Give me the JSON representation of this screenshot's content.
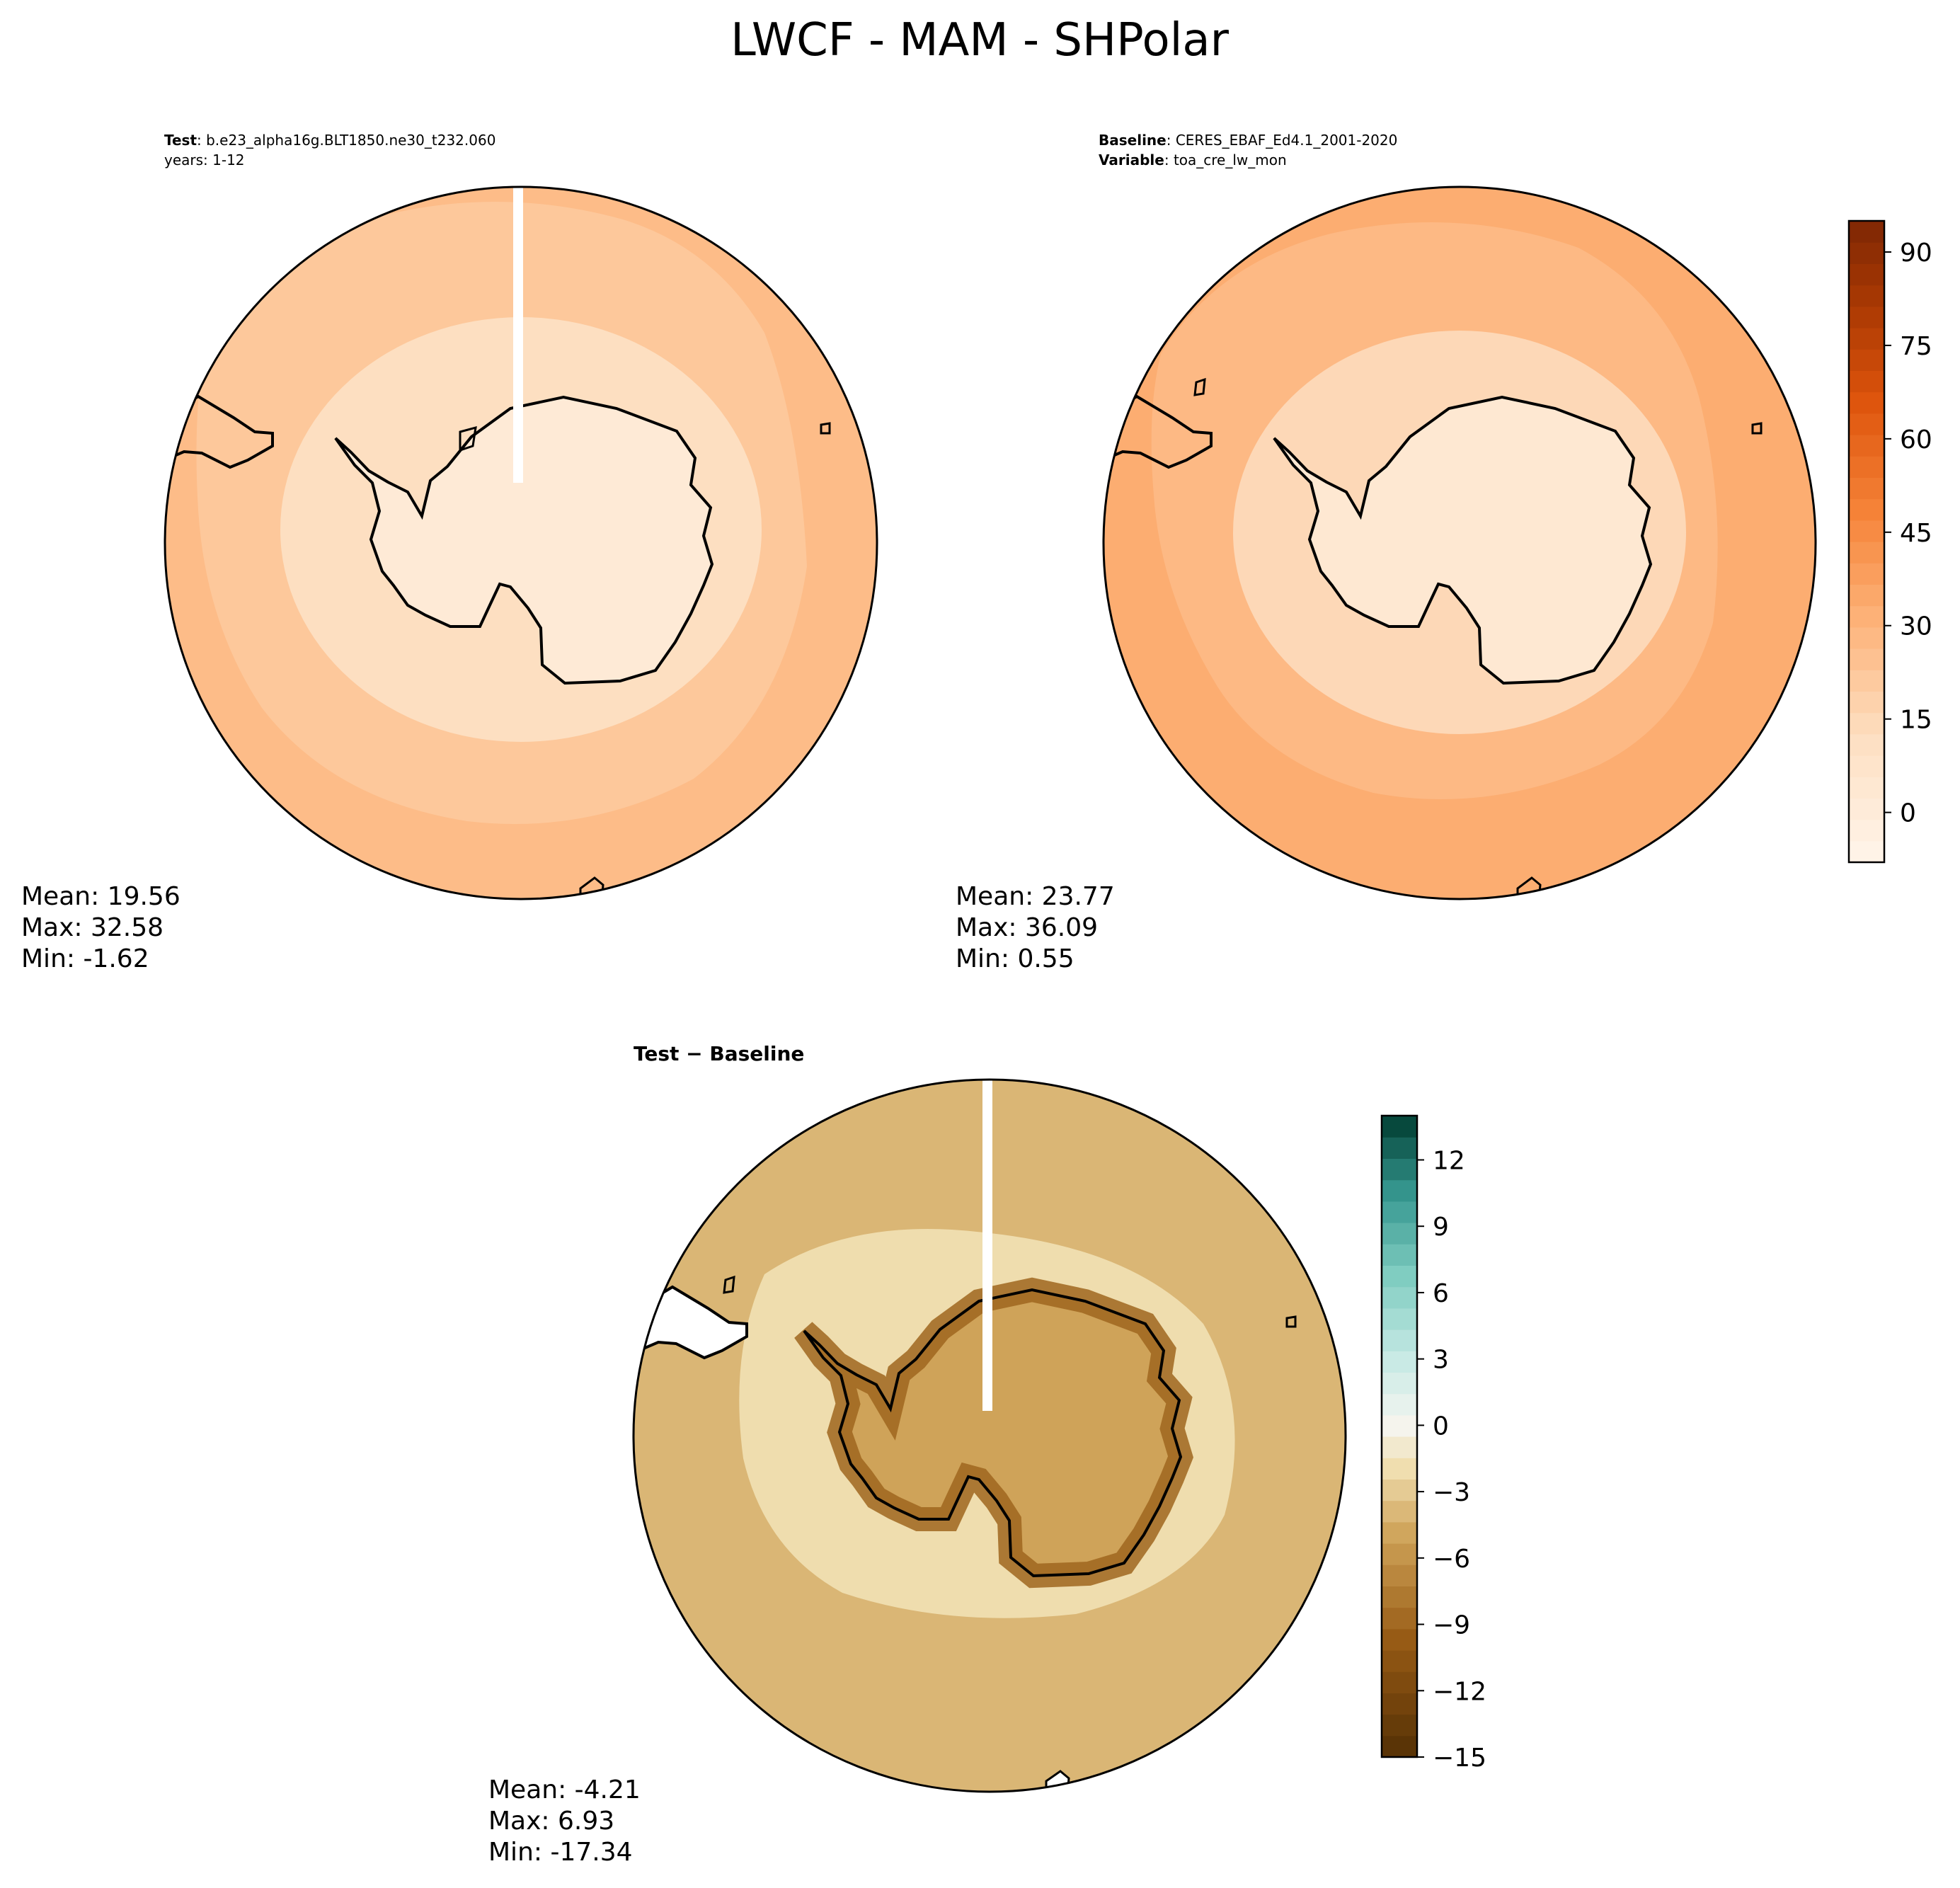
{
  "figure": {
    "title": "LWCF - MAM - SHPolar"
  },
  "chart_data": [
    {
      "type": "heatmap",
      "projection": "south-polar-stereographic",
      "panel": "test",
      "label_bold": "Test",
      "label_text": ": b.e23_alpha16g.BLT1850.ne30_t232.060",
      "label_line2": "years: 1-12",
      "stats": {
        "mean": "Mean: 19.56",
        "max": "Max: 32.58",
        "min": "Min: -1.62"
      },
      "colormap": "Oranges",
      "field_levels": {
        "outer_ocean": 27,
        "mid_ring": 22,
        "coast_ring": 12,
        "continent": 2
      }
    },
    {
      "type": "heatmap",
      "projection": "south-polar-stereographic",
      "panel": "baseline",
      "label_bold_1": "Baseline",
      "label_text_1": ": CERES_EBAF_Ed4.1_2001-2020",
      "label_bold_2": "Variable",
      "label_text_2": ": toa_cre_lw_mon",
      "stats": {
        "mean": "Mean: 23.77",
        "max": "Max: 36.09",
        "min": "Min:  0.55"
      },
      "colormap": "Oranges",
      "colorbar": {
        "min": -8,
        "max": 95,
        "ticks": [
          "0",
          "15",
          "30",
          "45",
          "60",
          "75",
          "90"
        ],
        "tick_values": [
          0,
          15,
          30,
          45,
          60,
          75,
          90
        ]
      },
      "field_levels": {
        "outer_ocean": 33,
        "mid_ring": 28,
        "coast_ring": 15,
        "continent": 4
      }
    },
    {
      "type": "heatmap",
      "projection": "south-polar-stereographic",
      "panel": "difference",
      "label_bold": "Test − Baseline",
      "stats": {
        "mean": "Mean: -4.21",
        "max": "Max:  6.93",
        "min": "Min: -17.34"
      },
      "colormap": "BrBG",
      "colorbar": {
        "min": -15,
        "max": 14,
        "ticks": [
          "12",
          "9",
          "6",
          "3",
          "0",
          "−3",
          "−6",
          "−9",
          "−12",
          "−15"
        ],
        "tick_values": [
          12,
          9,
          6,
          3,
          0,
          -3,
          -6,
          -9,
          -12,
          -15
        ]
      },
      "field_levels": {
        "outer_ocean": -4,
        "mid_ring": -2,
        "coast_ring": -9,
        "continent": -5
      }
    }
  ]
}
